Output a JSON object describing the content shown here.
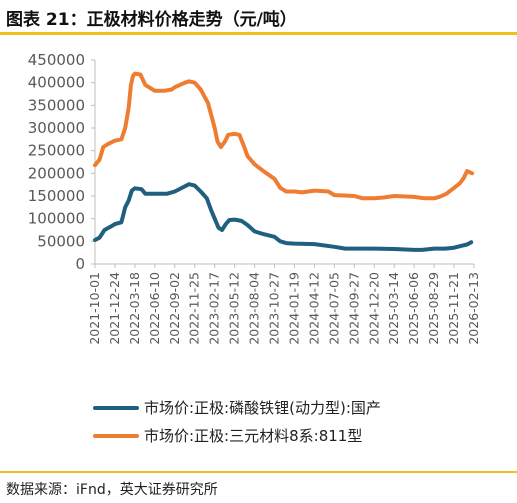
{
  "title": "图表 21：正极材料价格走势（元/吨）",
  "source": "数据来源：iFnd，英大证券研究所",
  "colors": {
    "lfp": "#1f5f7f",
    "ncm": "#ef7d31",
    "accent": "#f2c01e",
    "axis": "#bfbfbf"
  },
  "chart_data": {
    "type": "line",
    "title": "",
    "xlabel": "",
    "ylabel": "",
    "ylim": [
      0,
      450000
    ],
    "yticks": [
      "0",
      "50000",
      "100000",
      "150000",
      "200000",
      "250000",
      "300000",
      "350000",
      "400000",
      "450000"
    ],
    "x_ticks": [
      "2021-10-01",
      "2021-12-24",
      "2022-03-18",
      "2022-06-10",
      "2022-09-02",
      "2022-11-25",
      "2023-02-17",
      "2023-05-12",
      "2023-08-04",
      "2023-10-27",
      "2024-01-19",
      "2024-04-12",
      "2024-07-05",
      "2024-09-27",
      "2024-12-20",
      "2025-03-14",
      "2025-06-06",
      "2025-08-29",
      "2025-11-21",
      "2026-02-13"
    ],
    "grid": false,
    "legend_position": "bottom",
    "series": [
      {
        "name": "市场价:正极:磷酸铁锂(动力型):国产",
        "color": "#1f5f7f",
        "points": [
          [
            "2021-10-01",
            53000
          ],
          [
            "2021-10-20",
            58000
          ],
          [
            "2021-11-10",
            75000
          ],
          [
            "2021-12-05",
            82000
          ],
          [
            "2021-12-24",
            88000
          ],
          [
            "2022-01-20",
            92000
          ],
          [
            "2022-02-05",
            125000
          ],
          [
            "2022-02-20",
            140000
          ],
          [
            "2022-03-05",
            162000
          ],
          [
            "2022-03-18",
            167000
          ],
          [
            "2022-04-15",
            165000
          ],
          [
            "2022-05-01",
            155000
          ],
          [
            "2022-06-10",
            155000
          ],
          [
            "2022-08-01",
            155000
          ],
          [
            "2022-09-02",
            160000
          ],
          [
            "2022-10-10",
            170000
          ],
          [
            "2022-11-01",
            176000
          ],
          [
            "2022-11-25",
            173000
          ],
          [
            "2022-12-20",
            160000
          ],
          [
            "2023-01-15",
            145000
          ],
          [
            "2023-02-01",
            120000
          ],
          [
            "2023-02-17",
            100000
          ],
          [
            "2023-03-05",
            80000
          ],
          [
            "2023-03-20",
            75000
          ],
          [
            "2023-04-05",
            88000
          ],
          [
            "2023-04-20",
            97000
          ],
          [
            "2023-05-12",
            98000
          ],
          [
            "2023-06-10",
            95000
          ],
          [
            "2023-07-05",
            86000
          ],
          [
            "2023-08-04",
            72000
          ],
          [
            "2023-09-10",
            66000
          ],
          [
            "2023-10-27",
            60000
          ],
          [
            "2023-11-20",
            50000
          ],
          [
            "2023-12-15",
            46000
          ],
          [
            "2024-01-19",
            45000
          ],
          [
            "2024-04-12",
            44000
          ],
          [
            "2024-07-05",
            38000
          ],
          [
            "2024-08-20",
            34000
          ],
          [
            "2024-09-27",
            34000
          ],
          [
            "2024-12-20",
            34000
          ],
          [
            "2025-03-14",
            33000
          ],
          [
            "2025-06-06",
            31000
          ],
          [
            "2025-07-10",
            31000
          ],
          [
            "2025-08-29",
            34000
          ],
          [
            "2025-10-15",
            34000
          ],
          [
            "2025-11-21",
            36000
          ],
          [
            "2025-12-20",
            40000
          ],
          [
            "2026-01-15",
            43000
          ],
          [
            "2026-02-01",
            48000
          ]
        ]
      },
      {
        "name": "市场价:正极:三元材料8系:811型",
        "color": "#ef7d31",
        "points": [
          [
            "2021-10-01",
            218000
          ],
          [
            "2021-10-20",
            230000
          ],
          [
            "2021-11-05",
            258000
          ],
          [
            "2021-11-25",
            265000
          ],
          [
            "2021-12-24",
            272000
          ],
          [
            "2022-01-20",
            275000
          ],
          [
            "2022-02-05",
            300000
          ],
          [
            "2022-02-20",
            345000
          ],
          [
            "2022-03-01",
            395000
          ],
          [
            "2022-03-10",
            415000
          ],
          [
            "2022-03-18",
            420000
          ],
          [
            "2022-04-10",
            418000
          ],
          [
            "2022-05-01",
            395000
          ],
          [
            "2022-06-10",
            382000
          ],
          [
            "2022-07-20",
            382000
          ],
          [
            "2022-08-20",
            385000
          ],
          [
            "2022-09-02",
            390000
          ],
          [
            "2022-10-15",
            400000
          ],
          [
            "2022-11-01",
            403000
          ],
          [
            "2022-11-25",
            400000
          ],
          [
            "2022-12-20",
            385000
          ],
          [
            "2023-01-20",
            355000
          ],
          [
            "2023-02-17",
            300000
          ],
          [
            "2023-03-01",
            270000
          ],
          [
            "2023-03-15",
            258000
          ],
          [
            "2023-04-01",
            270000
          ],
          [
            "2023-04-15",
            285000
          ],
          [
            "2023-05-12",
            287000
          ],
          [
            "2023-06-01",
            285000
          ],
          [
            "2023-06-20",
            260000
          ],
          [
            "2023-07-05",
            238000
          ],
          [
            "2023-08-04",
            220000
          ],
          [
            "2023-09-10",
            205000
          ],
          [
            "2023-10-27",
            188000
          ],
          [
            "2023-11-20",
            168000
          ],
          [
            "2023-12-15",
            160000
          ],
          [
            "2024-01-19",
            160000
          ],
          [
            "2024-02-20",
            158000
          ],
          [
            "2024-04-12",
            162000
          ],
          [
            "2024-06-10",
            160000
          ],
          [
            "2024-07-05",
            152000
          ],
          [
            "2024-08-15",
            151000
          ],
          [
            "2024-09-27",
            150000
          ],
          [
            "2024-11-01",
            145000
          ],
          [
            "2024-12-20",
            145000
          ],
          [
            "2025-02-01",
            147000
          ],
          [
            "2025-03-14",
            150000
          ],
          [
            "2025-06-06",
            148000
          ],
          [
            "2025-07-20",
            145000
          ],
          [
            "2025-08-29",
            145000
          ],
          [
            "2025-09-20",
            148000
          ],
          [
            "2025-10-20",
            155000
          ],
          [
            "2025-11-21",
            168000
          ],
          [
            "2025-12-15",
            178000
          ],
          [
            "2026-01-01",
            190000
          ],
          [
            "2026-01-15",
            205000
          ],
          [
            "2026-02-05",
            200000
          ]
        ]
      }
    ]
  }
}
